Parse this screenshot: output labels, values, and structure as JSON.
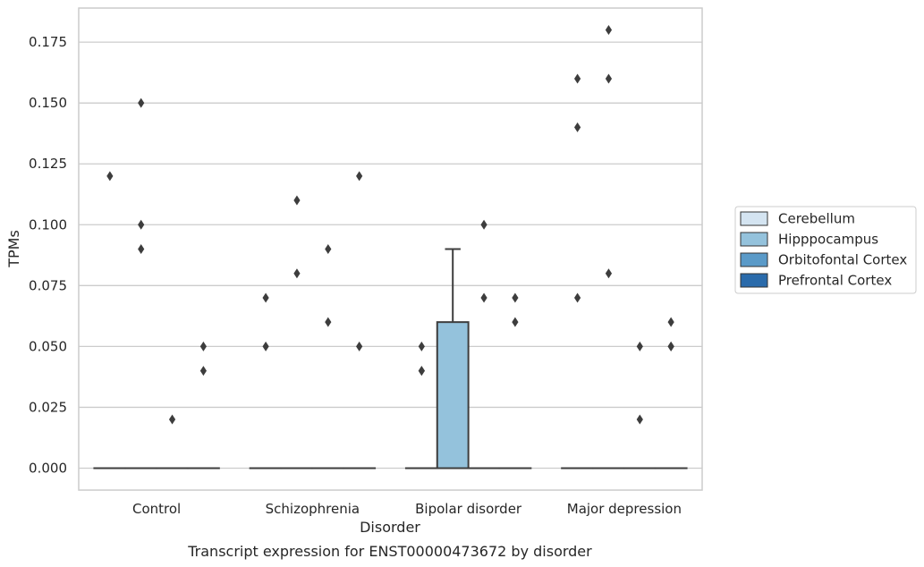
{
  "caption": "Transcript expression for ENST00000473672 by disorder",
  "chart_data": {
    "type": "box",
    "xlabel": "Disorder",
    "ylabel": "TPMs",
    "ylim": [
      -0.009,
      0.189
    ],
    "yticks": [
      "0.000",
      "0.025",
      "0.050",
      "0.075",
      "0.100",
      "0.125",
      "0.150",
      "0.175"
    ],
    "grid": "horizontal",
    "legend_position": "right",
    "categories": [
      "Control",
      "Schizophrenia",
      "Bipolar disorder",
      "Major depression"
    ],
    "series": [
      {
        "name": "Cerebellum",
        "color": "#d4e4f1"
      },
      {
        "name": "Hipppocampus",
        "color": "#94c2dc"
      },
      {
        "name": "Orbitofontal Cortex",
        "color": "#5a9ac8"
      },
      {
        "name": "Prefrontal Cortex",
        "color": "#2a6bab"
      }
    ],
    "boxes": [
      {
        "category": "Control",
        "series": "Cerebellum",
        "q1": 0,
        "median": 0,
        "q3": 0,
        "whisker_low": 0,
        "whisker_high": 0,
        "outliers": [
          0.12
        ]
      },
      {
        "category": "Control",
        "series": "Hipppocampus",
        "q1": 0,
        "median": 0,
        "q3": 0,
        "whisker_low": 0,
        "whisker_high": 0,
        "outliers": [
          0.15,
          0.1,
          0.09
        ]
      },
      {
        "category": "Control",
        "series": "Orbitofontal Cortex",
        "q1": 0,
        "median": 0,
        "q3": 0,
        "whisker_low": 0,
        "whisker_high": 0,
        "outliers": [
          0.02
        ]
      },
      {
        "category": "Control",
        "series": "Prefrontal Cortex",
        "q1": 0,
        "median": 0,
        "q3": 0,
        "whisker_low": 0,
        "whisker_high": 0,
        "outliers": [
          0.05,
          0.04
        ]
      },
      {
        "category": "Schizophrenia",
        "series": "Cerebellum",
        "q1": 0,
        "median": 0,
        "q3": 0,
        "whisker_low": 0,
        "whisker_high": 0,
        "outliers": [
          0.07,
          0.05
        ]
      },
      {
        "category": "Schizophrenia",
        "series": "Hipppocampus",
        "q1": 0,
        "median": 0,
        "q3": 0,
        "whisker_low": 0,
        "whisker_high": 0,
        "outliers": [
          0.11,
          0.08
        ]
      },
      {
        "category": "Schizophrenia",
        "series": "Orbitofontal Cortex",
        "q1": 0,
        "median": 0,
        "q3": 0,
        "whisker_low": 0,
        "whisker_high": 0,
        "outliers": [
          0.09,
          0.06
        ]
      },
      {
        "category": "Schizophrenia",
        "series": "Prefrontal Cortex",
        "q1": 0,
        "median": 0,
        "q3": 0,
        "whisker_low": 0,
        "whisker_high": 0,
        "outliers": [
          0.12,
          0.05
        ]
      },
      {
        "category": "Bipolar disorder",
        "series": "Cerebellum",
        "q1": 0,
        "median": 0,
        "q3": 0,
        "whisker_low": 0,
        "whisker_high": 0,
        "outliers": [
          0.05,
          0.04,
          0.04
        ]
      },
      {
        "category": "Bipolar disorder",
        "series": "Hipppocampus",
        "q1": 0,
        "median": 0,
        "q3": 0.06,
        "whisker_low": 0,
        "whisker_high": 0.09,
        "outliers": []
      },
      {
        "category": "Bipolar disorder",
        "series": "Orbitofontal Cortex",
        "q1": 0,
        "median": 0,
        "q3": 0,
        "whisker_low": 0,
        "whisker_high": 0,
        "outliers": [
          0.1,
          0.07
        ]
      },
      {
        "category": "Bipolar disorder",
        "series": "Prefrontal Cortex",
        "q1": 0,
        "median": 0,
        "q3": 0,
        "whisker_low": 0,
        "whisker_high": 0,
        "outliers": [
          0.07,
          0.06
        ]
      },
      {
        "category": "Major depression",
        "series": "Cerebellum",
        "q1": 0,
        "median": 0,
        "q3": 0,
        "whisker_low": 0,
        "whisker_high": 0,
        "outliers": [
          0.16,
          0.14,
          0.07
        ]
      },
      {
        "category": "Major depression",
        "series": "Hipppocampus",
        "q1": 0,
        "median": 0,
        "q3": 0,
        "whisker_low": 0,
        "whisker_high": 0,
        "outliers": [
          0.18,
          0.16,
          0.08
        ]
      },
      {
        "category": "Major depression",
        "series": "Orbitofontal Cortex",
        "q1": 0,
        "median": 0,
        "q3": 0,
        "whisker_low": 0,
        "whisker_high": 0,
        "outliers": [
          0.05,
          0.02
        ]
      },
      {
        "category": "Major depression",
        "series": "Prefrontal Cortex",
        "q1": 0,
        "median": 0,
        "q3": 0,
        "whisker_low": 0,
        "whisker_high": 0,
        "outliers": [
          0.06,
          0.05,
          0.05
        ]
      }
    ]
  }
}
